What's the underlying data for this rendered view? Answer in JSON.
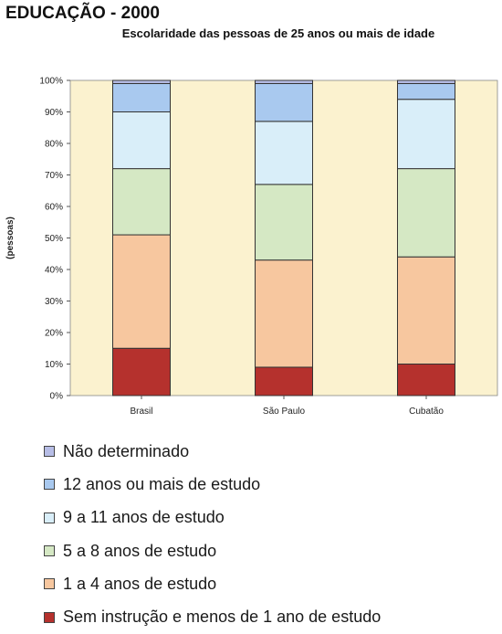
{
  "chart_data": {
    "type": "bar",
    "stacked": true,
    "title": "EDUCAÇÃO - 2000",
    "subtitle": "Escolaridade das pessoas de 25 anos ou mais de idade",
    "ylabel": "(pessoas)",
    "xlabel": "",
    "ylim": [
      0,
      100
    ],
    "yticks": [
      "0%",
      "10%",
      "20%",
      "30%",
      "40%",
      "50%",
      "60%",
      "70%",
      "80%",
      "90%",
      "100%"
    ],
    "categories": [
      "Brasil",
      "São Paulo",
      "Cubatão"
    ],
    "series": [
      {
        "name": "Sem instrução e menos de 1 ano de estudo",
        "color": "#b5312d",
        "values": [
          15,
          9,
          10
        ]
      },
      {
        "name": "1 a 4 anos de estudo",
        "color": "#f7c79f",
        "values": [
          36,
          34,
          34
        ]
      },
      {
        "name": "5 a 8 anos de estudo",
        "color": "#d5e8c4",
        "values": [
          21,
          24,
          28
        ]
      },
      {
        "name": "9 a 11 anos de estudo",
        "color": "#d9eef9",
        "values": [
          18,
          20,
          22
        ]
      },
      {
        "name": "12 anos ou mais de estudo",
        "color": "#a9c9ef",
        "values": [
          9,
          12,
          5
        ]
      },
      {
        "name": "Não determinado",
        "color": "#b7bde6",
        "values": [
          1,
          1,
          1
        ]
      }
    ],
    "legend_position": "bottom",
    "grid": false,
    "plot_background": "#fbf2cf"
  }
}
